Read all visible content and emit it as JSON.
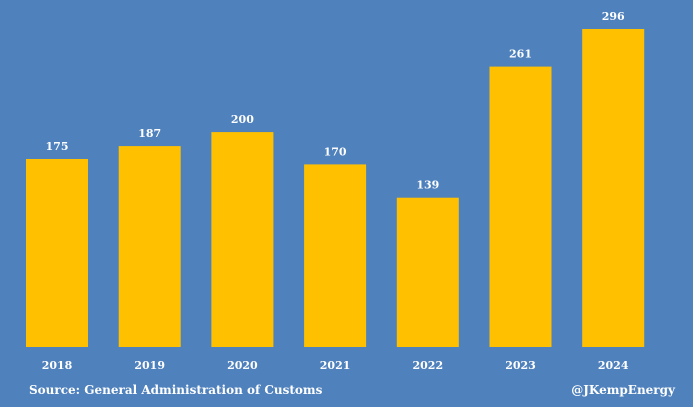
{
  "colors": {
    "background": "#4f81bd",
    "bar": "#ffc000",
    "text": "#ffffff"
  },
  "chart_data": {
    "type": "bar",
    "title": "",
    "xlabel": "",
    "ylabel": "",
    "ylim": [
      0,
      296
    ],
    "categories": [
      "2018",
      "2019",
      "2020",
      "2021",
      "2022",
      "2023",
      "2024"
    ],
    "values": [
      175,
      187,
      200,
      170,
      139,
      261,
      296
    ],
    "data_labels": [
      "175",
      "187",
      "200",
      "170",
      "139",
      "261",
      "296"
    ],
    "grid": false,
    "legend": "none"
  },
  "footer": {
    "source": "Source: General Administration of Customs",
    "credit": "@JKempEnergy"
  }
}
